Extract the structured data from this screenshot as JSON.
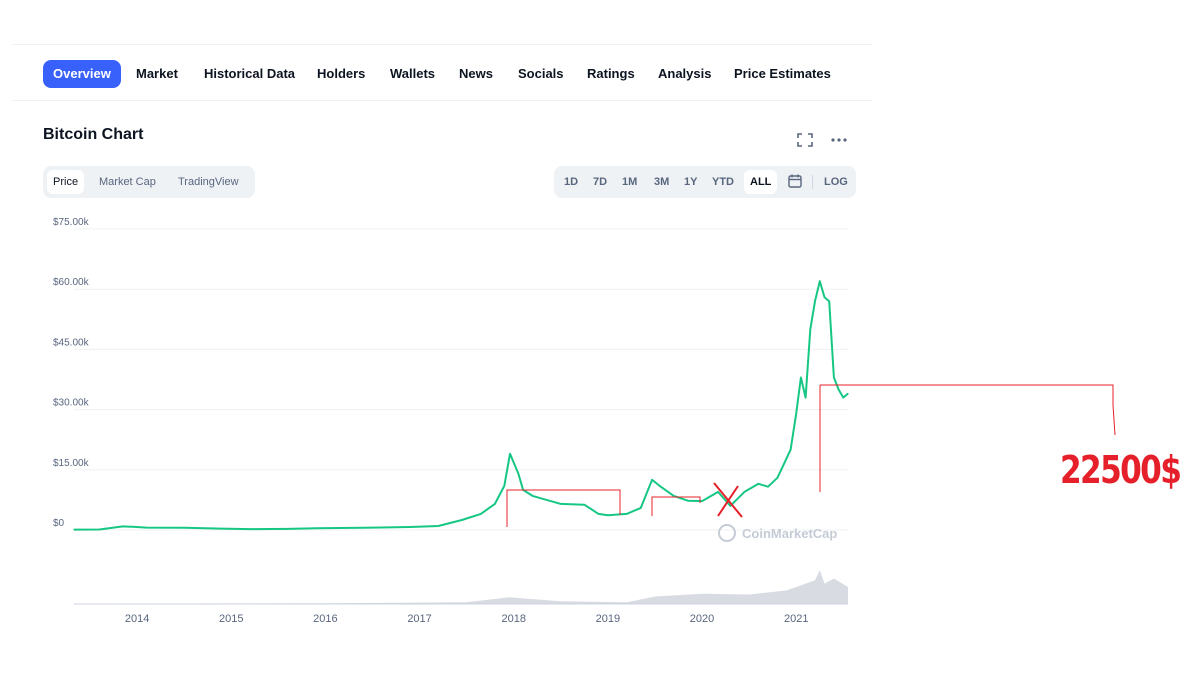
{
  "nav": {
    "tabs": [
      {
        "label": "Overview",
        "active": true
      },
      {
        "label": "Market"
      },
      {
        "label": "Historical Data"
      },
      {
        "label": "Holders"
      },
      {
        "label": "Wallets"
      },
      {
        "label": "News"
      },
      {
        "label": "Socials"
      },
      {
        "label": "Ratings"
      },
      {
        "label": "Analysis"
      },
      {
        "label": "Price Estimates"
      }
    ]
  },
  "chart_header": {
    "title": "Bitcoin Chart",
    "icons": [
      "fullscreen-icon",
      "more-options-icon"
    ]
  },
  "chart_type_toggle": [
    {
      "label": "Price",
      "active": true
    },
    {
      "label": "Market Cap"
    },
    {
      "label": "TradingView"
    }
  ],
  "range_buttons": [
    {
      "label": "1D"
    },
    {
      "label": "7D"
    },
    {
      "label": "1M"
    },
    {
      "label": "3M"
    },
    {
      "label": "1Y"
    },
    {
      "label": "YTD"
    },
    {
      "label": "ALL",
      "active": true
    },
    {
      "label": "calendar-icon",
      "icon": true
    },
    {
      "label": "LOG"
    }
  ],
  "watermark": "CoinMarketCap",
  "annotation": {
    "label": "22500$",
    "color": "#e5202a"
  },
  "colors": {
    "accent": "#3861fb",
    "price_line": "#16c784",
    "annotation": "#e5202a",
    "volume": "#c7cdd6"
  },
  "chart_data": {
    "type": "line",
    "title": "",
    "xlabel": "",
    "ylabel": "",
    "x_ticks": [
      "2014",
      "2015",
      "2016",
      "2017",
      "2018",
      "2019",
      "2020",
      "2021"
    ],
    "y_ticks": [
      "$0",
      "$15.00k",
      "$30.00k",
      "$45.00k",
      "$60.00k",
      "$75.00k"
    ],
    "ylim": [
      0,
      75000
    ],
    "xlim": [
      2013.33,
      2021.55
    ],
    "grid": true,
    "series": [
      {
        "x": [
          2013.33,
          2013.6,
          2013.85,
          2013.95,
          2014.1,
          2014.5,
          2014.9,
          2015.2,
          2015.6,
          2015.9,
          2016.4,
          2016.9,
          2017.2,
          2017.45,
          2017.65,
          2017.8,
          2017.9,
          2017.96,
          2018.05,
          2018.1,
          2018.2,
          2018.35,
          2018.5,
          2018.75,
          2018.9,
          2019.0,
          2019.2,
          2019.35,
          2019.47,
          2019.55,
          2019.7,
          2019.85,
          2020.0,
          2020.17,
          2020.3,
          2020.45,
          2020.6,
          2020.7,
          2020.8,
          2020.87,
          2020.94,
          2021.0,
          2021.05,
          2021.1,
          2021.15,
          2021.2,
          2021.25,
          2021.3,
          2021.35,
          2021.4,
          2021.45,
          2021.5,
          2021.55
        ],
        "y": [
          100,
          130,
          900,
          800,
          600,
          550,
          350,
          230,
          280,
          420,
          550,
          750,
          1000,
          2500,
          4000,
          6500,
          11000,
          19000,
          14000,
          10000,
          8500,
          7500,
          6500,
          6300,
          4000,
          3700,
          4000,
          5500,
          12500,
          11000,
          8500,
          7300,
          7200,
          9500,
          6000,
          9500,
          11500,
          10800,
          13000,
          16500,
          20000,
          29000,
          38000,
          33000,
          50000,
          57000,
          62000,
          58000,
          57000,
          38000,
          35000,
          33000,
          34000
        ]
      }
    ],
    "volume": {
      "x": [
        2013.33,
        2016.0,
        2017.5,
        2017.95,
        2018.5,
        2019.2,
        2019.5,
        2020.0,
        2020.5,
        2020.9,
        2021.1,
        2021.2,
        2021.25,
        2021.3,
        2021.4,
        2021.55
      ],
      "values": [
        0.01,
        0.02,
        0.05,
        0.2,
        0.08,
        0.05,
        0.22,
        0.3,
        0.28,
        0.4,
        0.6,
        0.7,
        1.0,
        0.6,
        0.75,
        0.5
      ]
    }
  }
}
